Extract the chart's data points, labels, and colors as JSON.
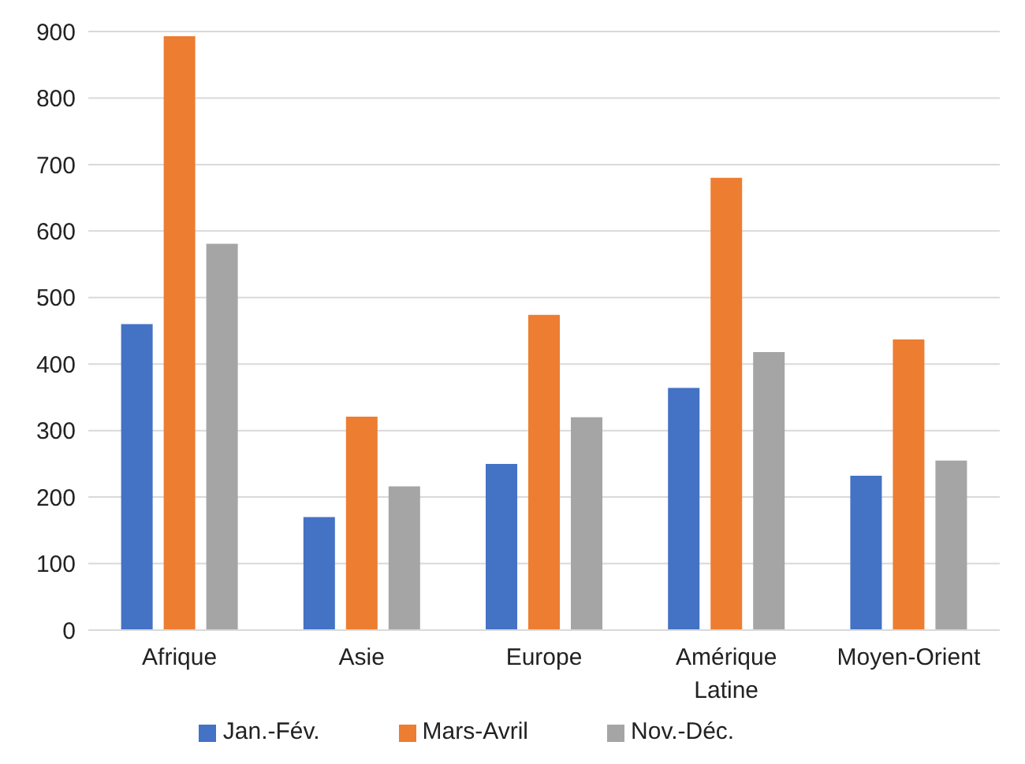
{
  "chart_data": {
    "type": "bar",
    "categories": [
      "Afrique",
      "Asie",
      "Europe",
      "Amérique Latine",
      "Moyen-Orient"
    ],
    "series": [
      {
        "name": "Jan.-Fév.",
        "color": "#4472c4",
        "values": [
          460,
          170,
          250,
          364,
          232
        ]
      },
      {
        "name": "Mars-Avril",
        "color": "#ed7d31",
        "values": [
          893,
          321,
          474,
          680,
          437
        ]
      },
      {
        "name": "Nov.-Déc.",
        "color": "#a5a5a5",
        "values": [
          581,
          216,
          320,
          418,
          255
        ]
      }
    ],
    "ylim": [
      0,
      900
    ],
    "yticks": [
      0,
      100,
      200,
      300,
      400,
      500,
      600,
      700,
      800,
      900
    ],
    "grid": "y",
    "legend": "bottom"
  }
}
